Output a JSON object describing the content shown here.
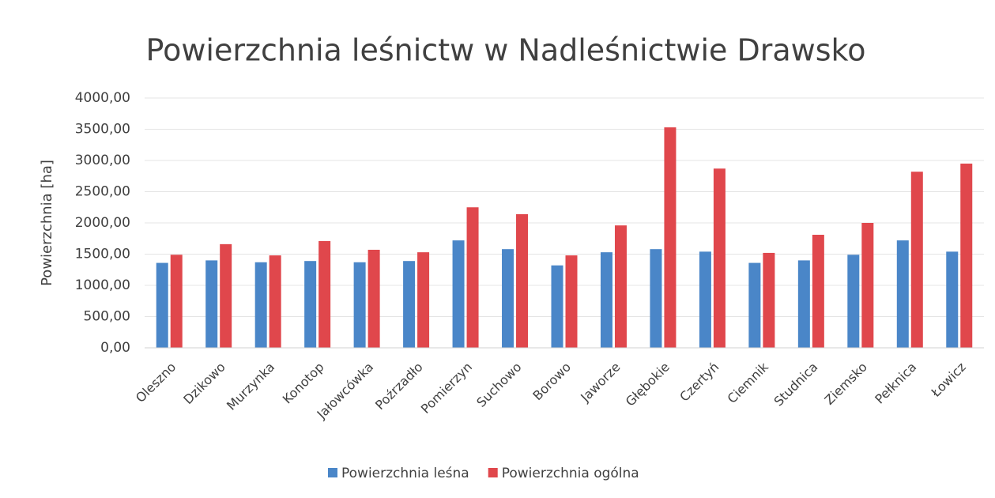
{
  "chart_data": {
    "type": "bar",
    "title": "Powierzchnia leśnictw w Nadleśnictwie Drawsko",
    "y_label": "Powierzchnia [ha]",
    "categories": [
      "Oleszno",
      "Dzikowo",
      "Murzynka",
      "Konotop",
      "Jałowcówka",
      "Poźrzadło",
      "Pomierzyn",
      "Suchowo",
      "Borowo",
      "Jaworze",
      "Głębokie",
      "Czertyń",
      "Ciemnik",
      "Studnica",
      "Ziemsko",
      "Pełknica",
      "Łowicz"
    ],
    "series": [
      {
        "name": "Powierzchnia leśna",
        "color": "#4a86c8",
        "values": [
          1360,
          1400,
          1370,
          1390,
          1370,
          1390,
          1720,
          1580,
          1320,
          1530,
          1580,
          1540,
          1360,
          1400,
          1490,
          1720,
          1540
        ]
      },
      {
        "name": "Powierzchnia ogólna",
        "color": "#e0474c",
        "values": [
          1490,
          1660,
          1480,
          1710,
          1570,
          1530,
          2250,
          2140,
          1480,
          1960,
          3530,
          2870,
          1520,
          1810,
          2000,
          2820,
          2950
        ]
      }
    ],
    "ylim": [
      0,
      4000
    ],
    "yticks": [
      {
        "value": 0,
        "label": "0,00"
      },
      {
        "value": 500,
        "label": "500,00"
      },
      {
        "value": 1000,
        "label": "1000,00"
      },
      {
        "value": 1500,
        "label": "1500,00"
      },
      {
        "value": 2000,
        "label": "2000,00"
      },
      {
        "value": 2500,
        "label": "2500,00"
      },
      {
        "value": 3000,
        "label": "3000,00"
      },
      {
        "value": 3500,
        "label": "3500,00"
      },
      {
        "value": 4000,
        "label": "4000,00"
      }
    ],
    "grid": true,
    "legend": "bottom"
  }
}
